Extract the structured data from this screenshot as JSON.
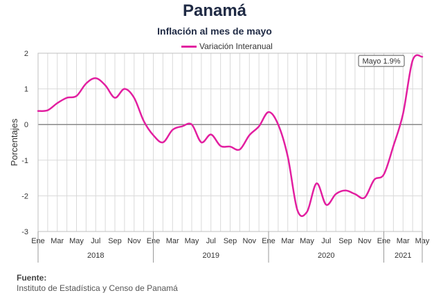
{
  "header": {
    "title": "Panamá",
    "subtitle": "Inflación al mes de mayo"
  },
  "source": {
    "label": "Fuente:",
    "text": "Instituto de Estadística y Censo de Panamá"
  },
  "colors": {
    "line": "#e21fa0",
    "grid": "#d9d9d9",
    "zero_line": "#888888"
  },
  "chart_data": {
    "type": "line",
    "title": "Inflación al mes de mayo",
    "ylabel": "Porcentajes",
    "xlabel": "",
    "ylim": [
      -3,
      2
    ],
    "yticks": [
      2,
      1,
      0,
      -1,
      -2,
      -3
    ],
    "grid": true,
    "legend_position": "top-center",
    "annotation": "Mayo 1.9%",
    "month_tick_labels": [
      "Ene",
      "Mar",
      "May",
      "Jul",
      "Sep",
      "Nov",
      "Ene",
      "Mar",
      "May",
      "Jul",
      "Sep",
      "Nov",
      "Ene",
      "Mar",
      "May",
      "Jul",
      "Sep",
      "Nov",
      "Ene",
      "Mar",
      "May"
    ],
    "years": [
      "2018",
      "2019",
      "2020",
      "2021"
    ],
    "x": [
      "2018-01",
      "2018-02",
      "2018-03",
      "2018-04",
      "2018-05",
      "2018-06",
      "2018-07",
      "2018-08",
      "2018-09",
      "2018-10",
      "2018-11",
      "2018-12",
      "2019-01",
      "2019-02",
      "2019-03",
      "2019-04",
      "2019-05",
      "2019-06",
      "2019-07",
      "2019-08",
      "2019-09",
      "2019-10",
      "2019-11",
      "2019-12",
      "2020-01",
      "2020-02",
      "2020-03",
      "2020-04",
      "2020-05",
      "2020-06",
      "2020-07",
      "2020-08",
      "2020-09",
      "2020-10",
      "2020-11",
      "2020-12",
      "2021-01",
      "2021-02",
      "2021-03",
      "2021-04",
      "2021-05"
    ],
    "series": [
      {
        "name": "Variación Interanual",
        "values": [
          0.38,
          0.4,
          0.6,
          0.75,
          0.8,
          1.15,
          1.3,
          1.1,
          0.75,
          1.0,
          0.75,
          0.1,
          -0.3,
          -0.5,
          -0.15,
          -0.05,
          0.0,
          -0.5,
          -0.28,
          -0.6,
          -0.62,
          -0.7,
          -0.3,
          -0.05,
          0.35,
          0.0,
          -0.9,
          -2.4,
          -2.45,
          -1.65,
          -2.25,
          -1.95,
          -1.85,
          -1.95,
          -2.05,
          -1.55,
          -1.4,
          -0.6,
          0.3,
          1.8,
          1.9
        ]
      }
    ]
  }
}
